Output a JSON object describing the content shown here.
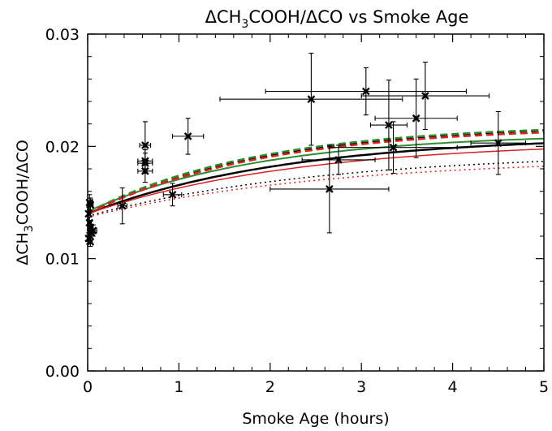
{
  "chart_data": {
    "type": "scatter",
    "title": "ΔCH3COOH/ΔCO vs Smoke Age",
    "title_parts": {
      "pre": "ΔCH",
      "sub": "3",
      "post": "COOH/ΔCO vs Smoke Age"
    },
    "xlabel": "Smoke Age (hours)",
    "ylabel": "ΔCH3COOH/ΔCO",
    "ylabel_parts": {
      "pre": "ΔCH",
      "sub": "3",
      "post": "COOH/ΔCO"
    },
    "xlim": [
      0,
      5
    ],
    "ylim": [
      0,
      0.03
    ],
    "x_ticks": [
      "0",
      "1",
      "2",
      "3",
      "4",
      "5"
    ],
    "y_ticks": [
      "0.00",
      "0.01",
      "0.02",
      "0.03"
    ],
    "grid": false,
    "legend": "none",
    "observations": [
      {
        "x": 0.02,
        "y": 0.015,
        "xerr": 0.03,
        "yerr": 0.0007
      },
      {
        "x": 0.03,
        "y": 0.0148,
        "xerr": 0.03,
        "yerr": 0.0006
      },
      {
        "x": 0.01,
        "y": 0.014,
        "xerr": 0.02,
        "yerr": 0.0006
      },
      {
        "x": 0.02,
        "y": 0.0132,
        "xerr": 0.02,
        "yerr": 0.0005
      },
      {
        "x": 0.03,
        "y": 0.0128,
        "xerr": 0.03,
        "yerr": 0.0005
      },
      {
        "x": 0.04,
        "y": 0.0123,
        "xerr": 0.03,
        "yerr": 0.0005
      },
      {
        "x": 0.01,
        "y": 0.0118,
        "xerr": 0.02,
        "yerr": 0.0005
      },
      {
        "x": 0.03,
        "y": 0.0115,
        "xerr": 0.02,
        "yerr": 0.0004
      },
      {
        "x": 0.06,
        "y": 0.0125,
        "xerr": 0.04,
        "yerr": 0.0005
      },
      {
        "x": 0.38,
        "y": 0.0147,
        "xerr": 0.05,
        "yerr": 0.0016
      },
      {
        "x": 0.63,
        "y": 0.0201,
        "xerr": 0.06,
        "yerr": 0.0021
      },
      {
        "x": 0.63,
        "y": 0.0187,
        "xerr": 0.08,
        "yerr": 0.001
      },
      {
        "x": 0.63,
        "y": 0.0185,
        "xerr": 0.08,
        "yerr": 0.0009
      },
      {
        "x": 0.63,
        "y": 0.0178,
        "xerr": 0.08,
        "yerr": 0.001
      },
      {
        "x": 0.93,
        "y": 0.0157,
        "xerr": 0.1,
        "yerr": 0.001
      },
      {
        "x": 1.1,
        "y": 0.0209,
        "xerr": 0.17,
        "yerr": 0.0016
      },
      {
        "x": 2.45,
        "y": 0.0242,
        "xerr": 1.0,
        "yerr": 0.0041
      },
      {
        "x": 2.65,
        "y": 0.0162,
        "xerr": 0.65,
        "yerr": 0.0039
      },
      {
        "x": 2.75,
        "y": 0.0188,
        "xerr": 0.4,
        "yerr": 0.0013
      },
      {
        "x": 3.05,
        "y": 0.0249,
        "xerr": 1.1,
        "yerr": 0.0021
      },
      {
        "x": 3.3,
        "y": 0.0219,
        "xerr": 0.2,
        "yerr": 0.004
      },
      {
        "x": 3.35,
        "y": 0.0199,
        "xerr": 0.7,
        "yerr": 0.0023
      },
      {
        "x": 3.6,
        "y": 0.0225,
        "xerr": 0.45,
        "yerr": 0.0035
      },
      {
        "x": 3.7,
        "y": 0.0245,
        "xerr": 0.7,
        "yerr": 0.003
      },
      {
        "x": 4.5,
        "y": 0.0203,
        "xerr": 0.3,
        "yerr": 0.0028
      }
    ],
    "model_curves": [
      {
        "color": "#000000",
        "dash": "solid",
        "width": 2.5,
        "y0": 0.014,
        "yinf": 0.021,
        "tau": 2.2
      },
      {
        "color": "#2e8b2e",
        "dash": "solid",
        "width": 2.0,
        "y0": 0.0142,
        "yinf": 0.0212,
        "tau": 1.9
      },
      {
        "color": "#dd2222",
        "dash": "solid",
        "width": 1.5,
        "y0": 0.014,
        "yinf": 0.0205,
        "tau": 2.3
      },
      {
        "color": "#000000",
        "dash": "dashed",
        "width": 2.5,
        "y0": 0.014,
        "yinf": 0.022,
        "tau": 1.9
      },
      {
        "color": "#2e8b2e",
        "dash": "dashed",
        "width": 2.5,
        "y0": 0.0141,
        "yinf": 0.022,
        "tau": 1.85
      },
      {
        "color": "#dd2222",
        "dash": "dashed",
        "width": 2.5,
        "y0": 0.014,
        "yinf": 0.0218,
        "tau": 1.9
      },
      {
        "color": "#000000",
        "dash": "dotted",
        "width": 1.5,
        "y0": 0.0138,
        "yinf": 0.0195,
        "tau": 2.6
      },
      {
        "color": "#dd2222",
        "dash": "dotted",
        "width": 1.5,
        "y0": 0.0137,
        "yinf": 0.019,
        "tau": 2.6
      }
    ]
  }
}
